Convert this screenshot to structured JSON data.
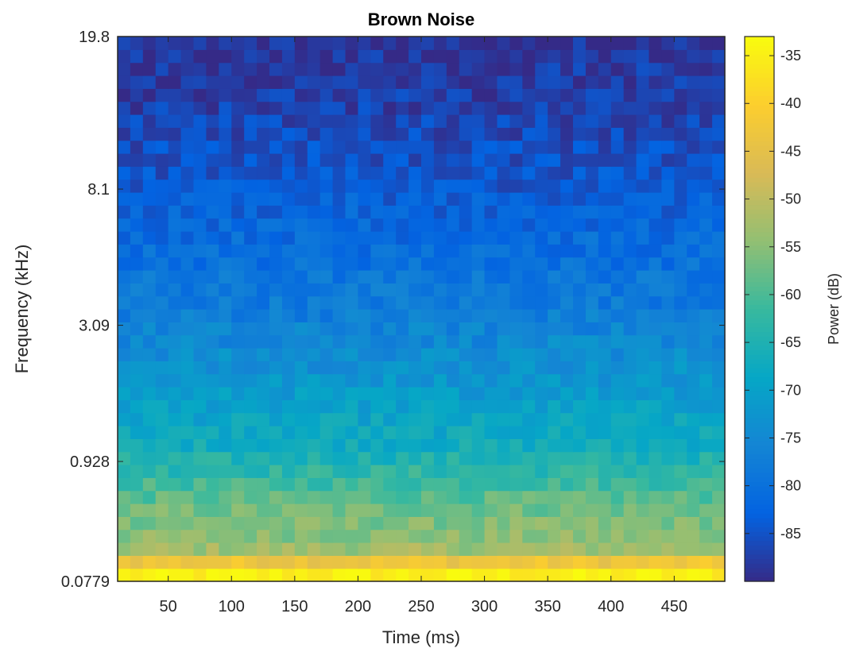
{
  "chart_data": {
    "type": "heatmap",
    "title": "Brown Noise",
    "xlabel": "Time (ms)",
    "ylabel": "Frequency (kHz)",
    "x_ticks": [
      50,
      100,
      150,
      200,
      250,
      300,
      350,
      400,
      450
    ],
    "x_range": [
      10,
      490
    ],
    "y_ticks": [
      "0.0779",
      "0.928",
      "3.09",
      "8.1",
      "19.8"
    ],
    "y_tick_positions": [
      0,
      0.22,
      0.47,
      0.72,
      1.0
    ],
    "y_scale": "auditory (nonlinear)",
    "colorbar": {
      "label": "Power (dB)",
      "ticks": [
        -35,
        -40,
        -45,
        -50,
        -55,
        -60,
        -65,
        -70,
        -75,
        -80,
        -85
      ],
      "range": [
        -90,
        -33
      ],
      "colormap": "parula"
    },
    "grid_cols": 48,
    "grid_rows": 42,
    "power_profile_low_to_high_freq": [
      -35,
      -43,
      -53,
      -55,
      -56,
      -57,
      -59,
      -61,
      -63,
      -65,
      -67,
      -68,
      -69,
      -70,
      -71,
      -72,
      -73,
      -74,
      -75,
      -76,
      -77,
      -78,
      -78.5,
      -79,
      -80,
      -80.5,
      -81,
      -82,
      -82.5,
      -83,
      -84,
      -84.5,
      -85,
      -85.5,
      -86,
      -86.5,
      -87,
      -87.5,
      -88,
      -88,
      -88.5,
      -88.5
    ],
    "grid": false
  },
  "colors": {
    "parula": [
      "#352A87",
      "#0363E1",
      "#1485D4",
      "#06A7C6",
      "#38B99E",
      "#92BF73",
      "#D9BA56",
      "#FCCE2E",
      "#F9FB0E"
    ],
    "axis": "#262626",
    "background": "#ffffff"
  }
}
